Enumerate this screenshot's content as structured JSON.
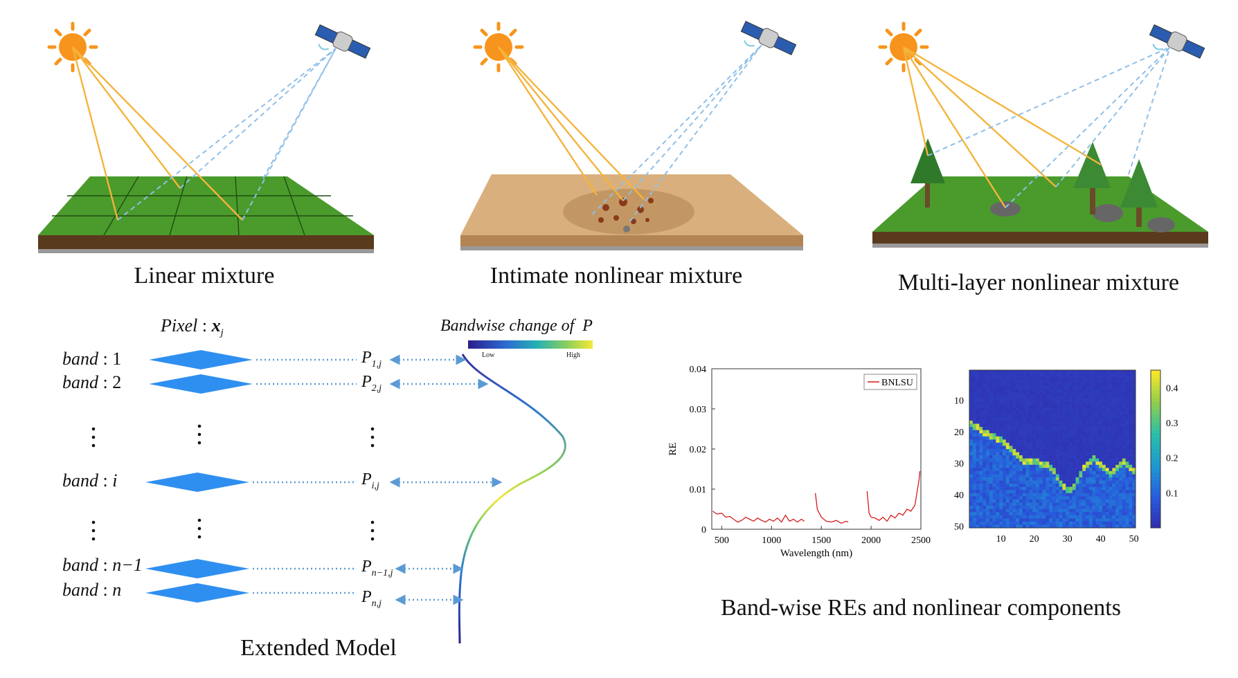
{
  "scenes": [
    {
      "caption": "Linear mixture",
      "ground": "grass"
    },
    {
      "caption": "Intimate nonlinear mixture",
      "ground": "sand"
    },
    {
      "caption": "Multi-layer nonlinear mixture",
      "ground": "grass-trees"
    }
  ],
  "model": {
    "caption": "Extended Model",
    "pixel_label": "Pixel",
    "pixel_symbol": "x",
    "pixel_sub": "j",
    "band_word": "band",
    "bands": [
      "1",
      "2",
      "i",
      "n−1",
      "n"
    ],
    "p_symbol": "P",
    "p_subs": [
      "1,j",
      "2,j",
      "i,j",
      "n−1,j",
      "n,j"
    ],
    "colorbar_title": "Bandwise change of  P",
    "colorbar_low": "Low",
    "colorbar_high": "High",
    "colormap": [
      "#3b0f70",
      "#2c5fbf",
      "#1fa0b8",
      "#6cc76a",
      "#f2e83a"
    ]
  },
  "results": {
    "caption": "Band-wise REs and nonlinear components",
    "chart_data": [
      {
        "type": "line",
        "xlabel": "Wavelength (nm)",
        "ylabel": "RE",
        "xlim": [
          400,
          2500
        ],
        "ylim": [
          0,
          0.04
        ],
        "xticks": [
          500,
          1000,
          1500,
          2000,
          2500
        ],
        "yticks": [
          "0",
          "0.01",
          "0.02",
          "0.03",
          "0.04"
        ],
        "legend": "top-right",
        "series": [
          {
            "name": "BNLSU",
            "color": "#d7191c",
            "segments": [
              [
                [
                  410,
                  0.0045
                ],
                [
                  450,
                  0.0038
                ],
                [
                  500,
                  0.004
                ],
                [
                  540,
                  0.003
                ],
                [
                  580,
                  0.0032
                ],
                [
                  620,
                  0.0025
                ],
                [
                  660,
                  0.0018
                ],
                [
                  700,
                  0.0022
                ],
                [
                  740,
                  0.003
                ],
                [
                  780,
                  0.0025
                ],
                [
                  820,
                  0.002
                ],
                [
                  860,
                  0.0028
                ],
                [
                  900,
                  0.0022
                ],
                [
                  940,
                  0.0018
                ],
                [
                  980,
                  0.0025
                ],
                [
                  1020,
                  0.002
                ],
                [
                  1060,
                  0.0028
                ],
                [
                  1100,
                  0.0018
                ],
                [
                  1140,
                  0.0035
                ],
                [
                  1180,
                  0.002
                ],
                [
                  1220,
                  0.0025
                ],
                [
                  1260,
                  0.0018
                ],
                [
                  1300,
                  0.0025
                ],
                [
                  1330,
                  0.002
                ]
              ],
              [
                [
                  1440,
                  0.009
                ],
                [
                  1460,
                  0.005
                ],
                [
                  1500,
                  0.003
                ],
                [
                  1550,
                  0.002
                ],
                [
                  1600,
                  0.0018
                ],
                [
                  1650,
                  0.0022
                ],
                [
                  1700,
                  0.0015
                ],
                [
                  1750,
                  0.002
                ],
                [
                  1770,
                  0.0018
                ]
              ],
              [
                [
                  1960,
                  0.0095
                ],
                [
                  1980,
                  0.004
                ],
                [
                  2000,
                  0.003
                ],
                [
                  2040,
                  0.0028
                ],
                [
                  2080,
                  0.0022
                ],
                [
                  2120,
                  0.003
                ],
                [
                  2160,
                  0.002
                ],
                [
                  2200,
                  0.0035
                ],
                [
                  2240,
                  0.0028
                ],
                [
                  2280,
                  0.004
                ],
                [
                  2320,
                  0.0035
                ],
                [
                  2360,
                  0.005
                ],
                [
                  2400,
                  0.0045
                ],
                [
                  2440,
                  0.006
                ],
                [
                  2460,
                  0.009
                ],
                [
                  2480,
                  0.012
                ],
                [
                  2490,
                  0.0145
                ]
              ]
            ]
          }
        ]
      },
      {
        "type": "heatmap",
        "xticks": [
          10,
          20,
          30,
          40,
          50
        ],
        "yticks": [
          10,
          20,
          30,
          40,
          50
        ],
        "xlim": [
          0,
          50
        ],
        "ylim": [
          0,
          50
        ],
        "colorbar_ticks": [
          "0.1",
          "0.2",
          "0.3",
          "0.4"
        ],
        "colorbar_range": [
          0,
          0.45
        ],
        "boundary_row_by_col": [
          17,
          18,
          18,
          19,
          20,
          20,
          21,
          21,
          22,
          22,
          23,
          24,
          25,
          26,
          27,
          28,
          29,
          29,
          29,
          29,
          29,
          30,
          30,
          30,
          31,
          32,
          34,
          36,
          37,
          38,
          38,
          37,
          35,
          33,
          31,
          30,
          29,
          28,
          29,
          30,
          31,
          32,
          33,
          32,
          31,
          30,
          29,
          30,
          31,
          32
        ],
        "description_values": "low (~0.03) above boundary, boundary ~0.3-0.45, below ~0.08-0.15"
      }
    ]
  }
}
